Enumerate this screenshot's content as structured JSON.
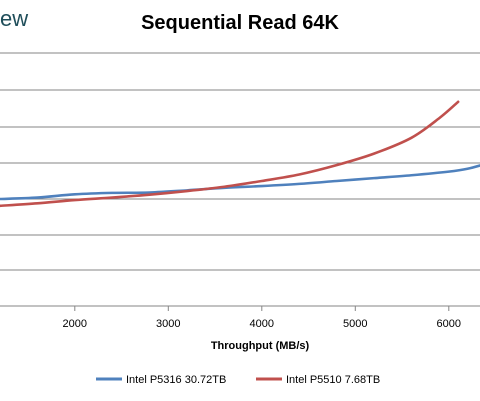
{
  "logo_fragment": "ew",
  "chart_data": {
    "type": "line",
    "title": "Sequential Read 64K",
    "xlabel": "Throughput (MB/s)",
    "ylabel": "",
    "xlim": [
      1200,
      6400
    ],
    "x_ticks": [
      2000,
      3000,
      4000,
      5000,
      6000
    ],
    "grid": true,
    "legend_position": "bottom",
    "series": [
      {
        "name": "Intel P5316 30.72TB",
        "color": "#4f81bd",
        "points": [
          [
            1200,
            0.0
          ],
          [
            1600,
            0.04
          ],
          [
            2000,
            0.13
          ],
          [
            2400,
            0.17
          ],
          [
            2800,
            0.18
          ],
          [
            3200,
            0.24
          ],
          [
            3600,
            0.31
          ],
          [
            4000,
            0.36
          ],
          [
            4400,
            0.42
          ],
          [
            4800,
            0.5
          ],
          [
            5200,
            0.58
          ],
          [
            5600,
            0.66
          ],
          [
            6000,
            0.76
          ],
          [
            6200,
            0.84
          ],
          [
            6400,
            0.98
          ]
        ]
      },
      {
        "name": "Intel P5510 7.68TB",
        "color": "#c0504d",
        "points": [
          [
            1200,
            -0.19
          ],
          [
            1600,
            -0.12
          ],
          [
            2000,
            -0.03
          ],
          [
            2400,
            0.04
          ],
          [
            2800,
            0.12
          ],
          [
            3200,
            0.22
          ],
          [
            3600,
            0.34
          ],
          [
            4000,
            0.5
          ],
          [
            4400,
            0.68
          ],
          [
            4800,
            0.94
          ],
          [
            5200,
            1.26
          ],
          [
            5600,
            1.7
          ],
          [
            5900,
            2.25
          ],
          [
            6100,
            2.7
          ]
        ]
      }
    ]
  }
}
